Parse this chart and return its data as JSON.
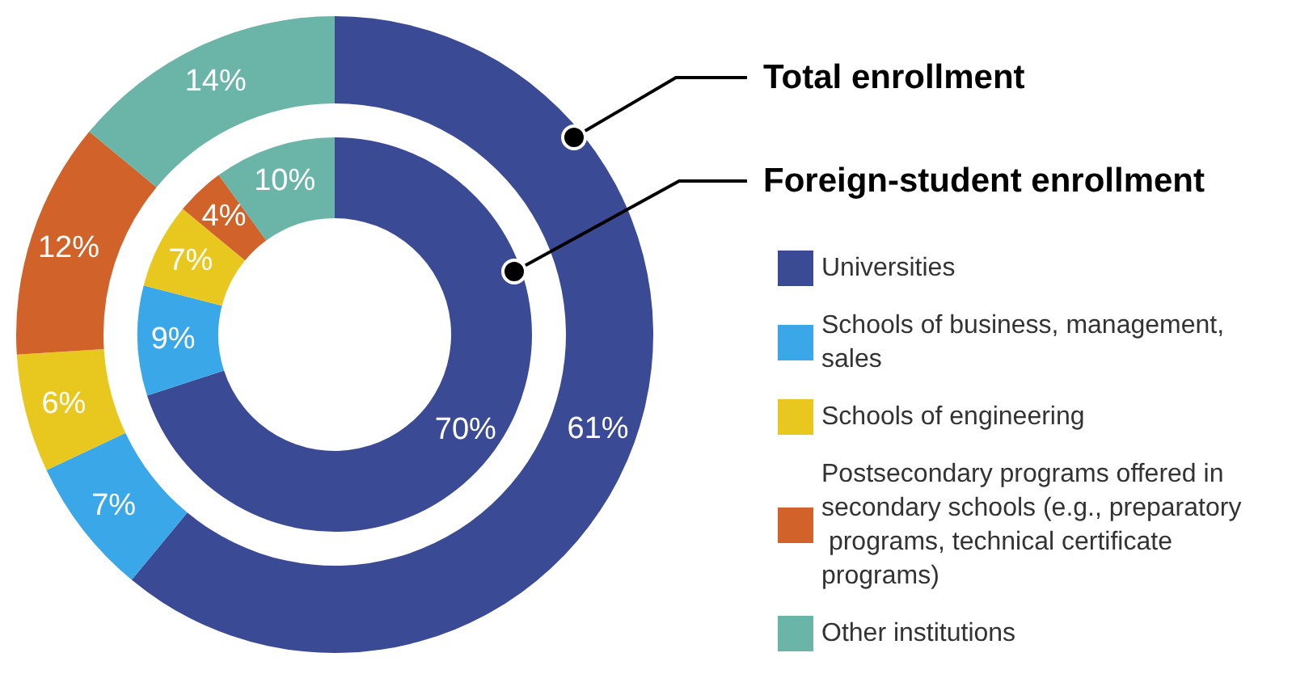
{
  "chart_data": {
    "type": "donut",
    "categories": [
      "Universities",
      "Schools of business, management, sales",
      "Schools of engineering",
      "Postsecondary programs offered in secondary schools (e.g., preparatory programs, technical certificate programs)",
      "Other institutions"
    ],
    "colors": [
      "#3a4a94",
      "#3aa8e8",
      "#e8c81e",
      "#d0622a",
      "#6bb5a8"
    ],
    "series": [
      {
        "name": "Total enrollment",
        "values": [
          61,
          7,
          6,
          12,
          14
        ],
        "value_labels": [
          "61%",
          "7%",
          "6%",
          "12%",
          "14%"
        ]
      },
      {
        "name": "Foreign-student enrollment",
        "values": [
          70,
          9,
          7,
          4,
          10
        ],
        "value_labels": [
          "70%",
          "9%",
          "7%",
          "4%",
          "10%"
        ]
      }
    ],
    "legend": "right"
  }
}
